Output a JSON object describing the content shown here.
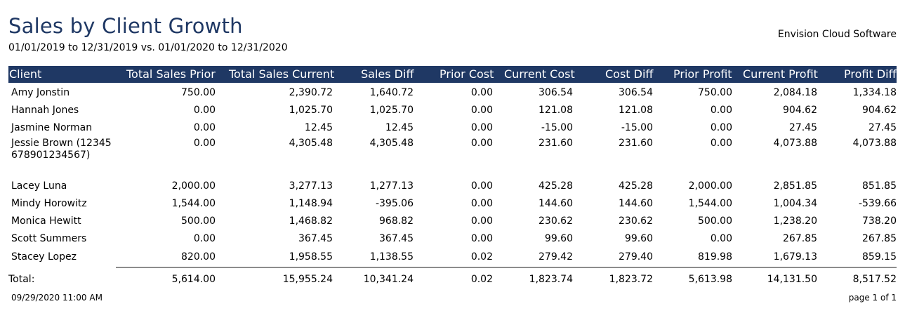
{
  "report": {
    "title": "Sales by Client Growth",
    "date_range": "01/01/2019 to 12/31/2019  vs.  01/01/2020 to 12/31/2020",
    "company": "Envision Cloud Software",
    "colors": {
      "header_bg": "#1f3864",
      "title": "#1f3864",
      "total_rule": "#8c8c8c"
    }
  },
  "columns": [
    "Client",
    "Total Sales Prior",
    "Total Sales Current",
    "Sales Diff",
    "Prior Cost",
    "Current Cost",
    "Cost Diff",
    "Prior Profit",
    "Current Profit",
    "Profit Diff"
  ],
  "rows": [
    [
      "Amy Jonstin",
      "750.00",
      "2,390.72",
      "1,640.72",
      "0.00",
      "306.54",
      "306.54",
      "750.00",
      "2,084.18",
      "1,334.18"
    ],
    [
      "Hannah Jones",
      "0.00",
      "1,025.70",
      "1,025.70",
      "0.00",
      "121.08",
      "121.08",
      "0.00",
      "904.62",
      "904.62"
    ],
    [
      "Jasmine Norman",
      "0.00",
      "12.45",
      "12.45",
      "0.00",
      "-15.00",
      "-15.00",
      "0.00",
      "27.45",
      "27.45"
    ],
    [
      "Jessie Brown (12345678901234567)",
      "0.00",
      "4,305.48",
      "4,305.48",
      "0.00",
      "231.60",
      "231.60",
      "0.00",
      "4,073.88",
      "4,073.88"
    ],
    [
      "Lacey Luna",
      "2,000.00",
      "3,277.13",
      "1,277.13",
      "0.00",
      "425.28",
      "425.28",
      "2,000.00",
      "2,851.85",
      "851.85"
    ],
    [
      "Mindy Horowitz",
      "1,544.00",
      "1,148.94",
      "-395.06",
      "0.00",
      "144.60",
      "144.60",
      "1,544.00",
      "1,004.34",
      "-539.66"
    ],
    [
      "Monica Hewitt",
      "500.00",
      "1,468.82",
      "968.82",
      "0.00",
      "230.62",
      "230.62",
      "500.00",
      "1,238.20",
      "738.20"
    ],
    [
      "Scott Summers",
      "0.00",
      "367.45",
      "367.45",
      "0.00",
      "99.60",
      "99.60",
      "0.00",
      "267.85",
      "267.85"
    ],
    [
      "Stacey Lopez",
      "820.00",
      "1,958.55",
      "1,138.55",
      "0.02",
      "279.42",
      "279.40",
      "819.98",
      "1,679.13",
      "859.15"
    ]
  ],
  "totals": [
    "Total:",
    "5,614.00",
    "15,955.24",
    "10,341.24",
    "0.02",
    "1,823.74",
    "1,823.72",
    "5,613.98",
    "14,131.50",
    "8,517.52"
  ],
  "footer": {
    "printed": "09/29/2020 11:00 AM",
    "page": "page 1 of 1"
  }
}
